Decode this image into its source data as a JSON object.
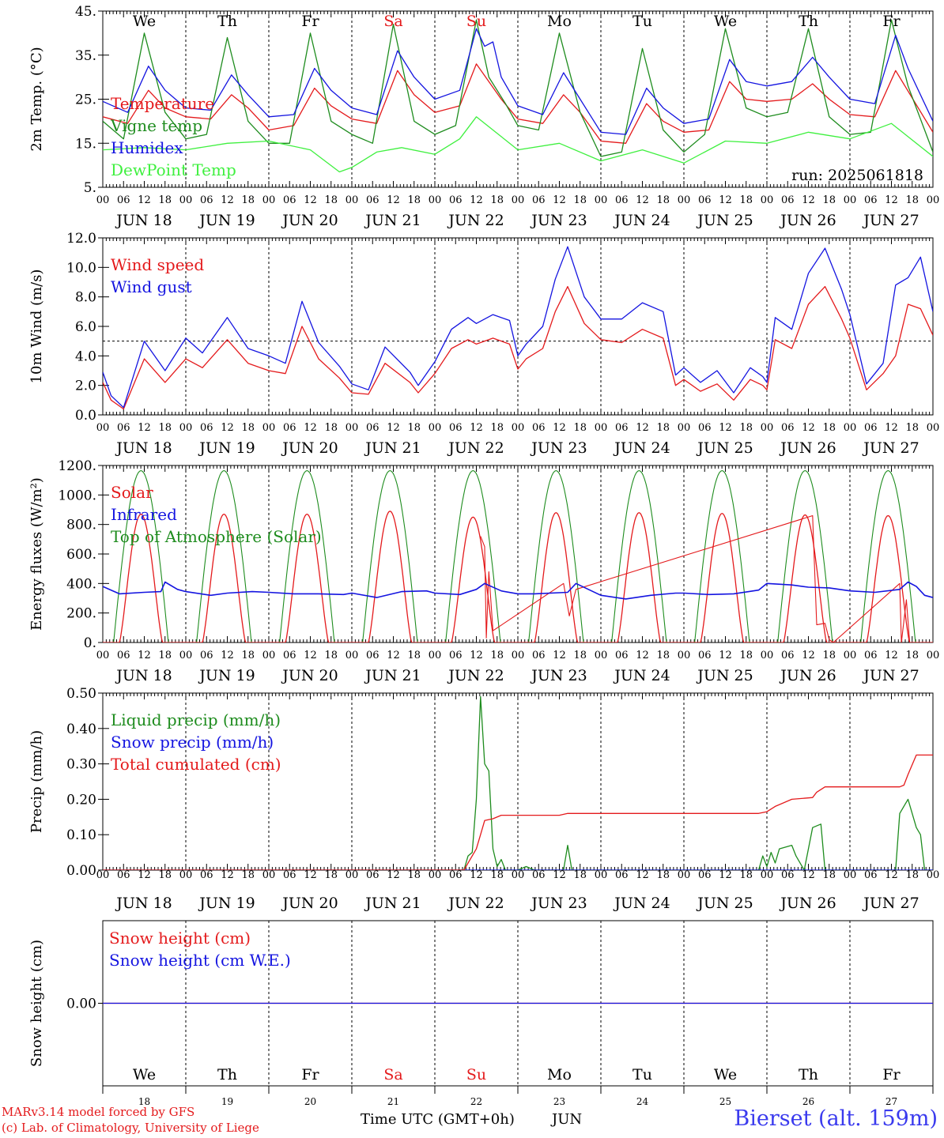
{
  "colors": {
    "red": "#e41a1c",
    "green": "#1e8c1e",
    "blue": "#1414e0",
    "lightgreen": "#3ff03f",
    "black": "#000000"
  },
  "x_axis": {
    "hour_labels": [
      "00",
      "06",
      "12",
      "18"
    ],
    "end_hour_label": "00",
    "date_labels": [
      "JUN 18",
      "JUN 19",
      "JUN 20",
      "JUN 21",
      "JUN 22",
      "JUN 23",
      "JUN 24",
      "JUN 25",
      "JUN 26",
      "JUN 27"
    ],
    "weekdays": [
      "We",
      "Th",
      "Fr",
      "Sa",
      "Su",
      "Mo",
      "Tu",
      "We",
      "Th",
      "Fr"
    ],
    "weekend_days": [
      3,
      4
    ],
    "bottom_day_numbers": [
      "18",
      "19",
      "20",
      "21",
      "22",
      "23",
      "24",
      "25",
      "26",
      "27"
    ]
  },
  "chart_data": [
    {
      "type": "line",
      "ylabel": "2m Temp. (°C)",
      "ylim": [
        5,
        45
      ],
      "ticks": [
        {
          "v": 45,
          "t": "45."
        },
        {
          "v": 35,
          "t": "35."
        },
        {
          "v": 25,
          "t": "25."
        },
        {
          "v": 15,
          "t": "15."
        },
        {
          "v": 5,
          "t": "5."
        }
      ],
      "annotation": "run: 2025061818",
      "series": [
        {
          "name": "Temperature",
          "color": "#e41a1c",
          "x": [
            0,
            0.3,
            0.55,
            0.75,
            1,
            1.3,
            1.55,
            1.75,
            2,
            2.3,
            2.55,
            2.75,
            3,
            3.3,
            3.55,
            3.75,
            4,
            4.3,
            4.5,
            4.65,
            4.8,
            5,
            5.3,
            5.55,
            5.75,
            6,
            6.3,
            6.55,
            6.75,
            7,
            7.3,
            7.55,
            7.75,
            8,
            8.3,
            8.55,
            8.75,
            9,
            9.3,
            9.55,
            10
          ],
          "y": [
            21,
            19.5,
            27,
            23,
            21,
            20.5,
            26,
            23,
            18,
            19,
            27.5,
            23.5,
            20.5,
            19.5,
            31.5,
            26,
            22,
            23.5,
            33,
            29,
            25,
            20.5,
            19.5,
            26,
            22,
            15.5,
            15,
            24,
            20,
            17.5,
            18,
            29,
            25,
            24.5,
            25,
            28.5,
            25,
            21.5,
            21,
            31.5,
            17.5
          ]
        },
        {
          "name": "Vigne temp",
          "color": "#1e8c1e",
          "x": [
            0,
            0.25,
            0.5,
            0.75,
            1,
            1.25,
            1.5,
            1.75,
            2,
            2.25,
            2.5,
            2.75,
            3,
            3.25,
            3.5,
            3.75,
            4,
            4.25,
            4.5,
            4.65,
            4.85,
            5,
            5.25,
            5.5,
            5.75,
            6,
            6.25,
            6.5,
            6.75,
            7,
            7.25,
            7.5,
            7.75,
            8,
            8.25,
            8.5,
            8.75,
            9,
            9.25,
            9.5,
            9.7,
            10
          ],
          "y": [
            20,
            16,
            40,
            22,
            16,
            17,
            39,
            20,
            15,
            15,
            40,
            20,
            17,
            15,
            42,
            20,
            17,
            19,
            43,
            30,
            24,
            19,
            18,
            40,
            22,
            12,
            13,
            36.5,
            18,
            13,
            17,
            41,
            23,
            21,
            22,
            41,
            21,
            17,
            17.5,
            43,
            28,
            13
          ]
        },
        {
          "name": "Humidex",
          "color": "#1414e0",
          "x": [
            0,
            0.3,
            0.55,
            0.75,
            1,
            1.3,
            1.55,
            1.75,
            2,
            2.3,
            2.55,
            2.75,
            3,
            3.3,
            3.55,
            3.75,
            4,
            4.3,
            4.5,
            4.6,
            4.7,
            4.8,
            5,
            5.3,
            5.55,
            5.75,
            6,
            6.3,
            6.55,
            6.75,
            7,
            7.3,
            7.55,
            7.75,
            8,
            8.3,
            8.55,
            8.75,
            9,
            9.3,
            9.55,
            9.7,
            10
          ],
          "y": [
            24.5,
            22,
            32.5,
            27,
            23,
            22.5,
            30.5,
            26,
            21,
            21.5,
            32,
            27,
            23,
            21.5,
            36,
            30,
            25,
            27,
            41,
            37,
            38,
            30,
            23.5,
            21.5,
            31,
            25,
            17.5,
            17,
            27.5,
            23,
            19.5,
            20.5,
            34,
            29,
            28,
            29,
            34.5,
            30,
            25,
            24,
            39.5,
            32,
            20
          ]
        },
        {
          "name": "DewPoint Temp",
          "color": "#3ff03f",
          "x": [
            0,
            0.5,
            1,
            1.5,
            2,
            2.5,
            2.85,
            3,
            3.3,
            3.6,
            4,
            4.3,
            4.5,
            4.7,
            5,
            5.5,
            6,
            6.5,
            7,
            7.5,
            8,
            8.5,
            9,
            9.5,
            10
          ],
          "y": [
            13.5,
            14,
            13.5,
            15,
            15.5,
            13.5,
            8.5,
            9.5,
            13,
            14,
            12.5,
            16,
            21,
            18,
            13.5,
            15,
            11,
            13.5,
            10.5,
            15.5,
            15,
            17.5,
            16,
            19.5,
            12
          ]
        }
      ]
    },
    {
      "type": "line",
      "ylabel": "10m Wind (m/s)",
      "ylim": [
        0,
        12
      ],
      "ticks": [
        {
          "v": 12,
          "t": "12.0"
        },
        {
          "v": 10,
          "t": "10.0"
        },
        {
          "v": 8,
          "t": "8.0"
        },
        {
          "v": 6,
          "t": "6.0"
        },
        {
          "v": 4,
          "t": "4.0"
        },
        {
          "v": 2,
          "t": "2.0"
        },
        {
          "v": 0,
          "t": "0.0"
        }
      ],
      "ref_line": 5,
      "series": [
        {
          "name": "Wind speed",
          "color": "#e41a1c",
          "x": [
            0,
            0.1,
            0.25,
            0.5,
            0.75,
            1,
            1.2,
            1.5,
            1.75,
            2,
            2.2,
            2.4,
            2.6,
            2.85,
            3,
            3.2,
            3.4,
            3.7,
            3.8,
            4,
            4.2,
            4.4,
            4.5,
            4.7,
            4.9,
            5,
            5.1,
            5.3,
            5.45,
            5.6,
            5.8,
            6,
            6.25,
            6.5,
            6.75,
            6.9,
            7,
            7.2,
            7.4,
            7.6,
            7.8,
            7.95,
            8,
            8.1,
            8.3,
            8.5,
            8.7,
            8.9,
            9,
            9.2,
            9.4,
            9.55,
            9.7,
            9.85,
            10
          ],
          "y": [
            2.2,
            1,
            0.4,
            3.8,
            2.2,
            3.8,
            3.2,
            5.1,
            3.5,
            3,
            2.8,
            6,
            3.8,
            2.5,
            1.5,
            1.4,
            3.5,
            2.2,
            1.5,
            2.8,
            4.5,
            5.1,
            4.8,
            5.2,
            4.8,
            3.1,
            3.8,
            4.5,
            7,
            8.7,
            6.2,
            5.1,
            4.9,
            5.8,
            5.2,
            2,
            2.4,
            1.6,
            2.1,
            1,
            2.4,
            2,
            1.7,
            5.1,
            4.5,
            7.5,
            8.7,
            6.5,
            5.2,
            1.7,
            2.8,
            4,
            7.5,
            7.2,
            5.4
          ]
        },
        {
          "name": "Wind gust",
          "color": "#1414e0",
          "x": [
            0,
            0.1,
            0.25,
            0.5,
            0.75,
            1,
            1.2,
            1.5,
            1.75,
            2,
            2.2,
            2.4,
            2.6,
            2.85,
            3,
            3.2,
            3.4,
            3.7,
            3.8,
            4,
            4.2,
            4.4,
            4.5,
            4.7,
            4.9,
            5,
            5.1,
            5.3,
            5.45,
            5.6,
            5.8,
            6,
            6.25,
            6.5,
            6.75,
            6.9,
            7,
            7.2,
            7.4,
            7.6,
            7.8,
            7.95,
            8,
            8.1,
            8.3,
            8.5,
            8.7,
            8.9,
            9,
            9.2,
            9.4,
            9.55,
            9.7,
            9.85,
            10
          ],
          "y": [
            2.9,
            1.3,
            0.5,
            5,
            3,
            5.2,
            4.2,
            6.6,
            4.5,
            4,
            3.5,
            7.7,
            4.9,
            3.3,
            2.1,
            1.7,
            4.6,
            2.9,
            2,
            3.6,
            5.8,
            6.6,
            6.2,
            6.8,
            6.4,
            4,
            4.8,
            6,
            9.2,
            11.4,
            8,
            6.5,
            6.5,
            7.6,
            7,
            2.7,
            3.2,
            2.2,
            3,
            1.5,
            3.2,
            2.6,
            2.2,
            6.6,
            5.8,
            9.6,
            11.3,
            8.5,
            6.8,
            2.1,
            3.5,
            8.8,
            9.3,
            10.7,
            7
          ]
        }
      ]
    },
    {
      "type": "line",
      "ylabel": "Energy fluxes (W/m²)",
      "ylim": [
        0,
        1200
      ],
      "ticks": [
        {
          "v": 1200,
          "t": "1200."
        },
        {
          "v": 1000,
          "t": "1000."
        },
        {
          "v": 800,
          "t": "800."
        },
        {
          "v": 600,
          "t": "600."
        },
        {
          "v": 400,
          "t": "400."
        },
        {
          "v": 200,
          "t": "200."
        },
        {
          "v": 0,
          "t": "0."
        }
      ],
      "toa_peak": 1165,
      "solar_peaks": [
        870,
        870,
        870,
        890,
        850,
        880,
        880,
        875,
        865,
        860
      ],
      "series": [
        {
          "name": "Solar",
          "color": "#e41a1c",
          "x": [
            4.55,
            4.6,
            4.62,
            4.65,
            4.7,
            5.55,
            5.62,
            5.7,
            8.55,
            8.6,
            8.7,
            8.75,
            8.8,
            9.6,
            9.62,
            9.68,
            9.72
          ],
          "y": [
            720,
            650,
            30,
            480,
            80,
            400,
            180,
            360,
            860,
            120,
            130,
            20,
            0,
            400,
            0,
            290,
            0
          ]
        },
        {
          "name": "Infrared",
          "color": "#1414e0",
          "x": [
            0,
            0.2,
            0.5,
            0.7,
            0.75,
            0.9,
            1,
            1.3,
            1.5,
            1.8,
            2,
            2.3,
            2.6,
            2.9,
            3,
            3.3,
            3.6,
            3.9,
            4,
            4.3,
            4.5,
            4.6,
            4.8,
            5,
            5.2,
            5.6,
            5.7,
            6,
            6.3,
            6.6,
            6.9,
            7,
            7.3,
            7.6,
            7.9,
            8,
            8.3,
            8.5,
            8.75,
            9,
            9.3,
            9.6,
            9.7,
            9.8,
            9.9,
            10
          ],
          "y": [
            380,
            330,
            340,
            345,
            410,
            360,
            345,
            320,
            335,
            345,
            340,
            330,
            330,
            325,
            335,
            305,
            345,
            350,
            335,
            325,
            360,
            400,
            350,
            330,
            330,
            340,
            400,
            320,
            295,
            320,
            335,
            335,
            325,
            330,
            355,
            400,
            390,
            375,
            370,
            350,
            340,
            360,
            410,
            380,
            320,
            305
          ]
        },
        {
          "name": "Top of Atmosphere (Solar)",
          "color": "#1e8c1e",
          "x": [],
          "y": []
        }
      ]
    },
    {
      "type": "line",
      "ylabel": "Precip (mm/h)",
      "ylim": [
        0,
        0.5
      ],
      "ticks": [
        {
          "v": 0.5,
          "t": "0.50"
        },
        {
          "v": 0.4,
          "t": "0.40"
        },
        {
          "v": 0.3,
          "t": "0.30"
        },
        {
          "v": 0.2,
          "t": "0.20"
        },
        {
          "v": 0.1,
          "t": "0.10"
        },
        {
          "v": 0,
          "t": "0.00"
        }
      ],
      "series": [
        {
          "name": "Liquid precip (mm/h)",
          "color": "#1e8c1e",
          "x": [
            0,
            4.35,
            4.4,
            4.45,
            4.5,
            4.55,
            4.6,
            4.65,
            4.7,
            4.75,
            4.8,
            4.85,
            5,
            5.1,
            5.2,
            5.55,
            5.6,
            5.65,
            7.9,
            7.95,
            8,
            8.05,
            8.1,
            8.15,
            8.3,
            8.35,
            8.45,
            8.55,
            8.65,
            8.7,
            9.55,
            9.6,
            9.7,
            9.8,
            9.85,
            9.9,
            10
          ],
          "y": [
            0,
            0,
            0.04,
            0.05,
            0.2,
            0.49,
            0.3,
            0.28,
            0.06,
            0.01,
            0.03,
            0,
            0,
            0.01,
            0,
            0,
            0.07,
            0,
            0,
            0.04,
            0.01,
            0.05,
            0.02,
            0.06,
            0.07,
            0.04,
            0,
            0.12,
            0.13,
            0,
            0,
            0.16,
            0.2,
            0.12,
            0.1,
            0,
            0
          ]
        },
        {
          "name": "Snow precip (mm/h)",
          "color": "#1414e0",
          "x": [
            0,
            10
          ],
          "y": [
            0,
            0
          ]
        },
        {
          "name": "Total cumulated (cm)",
          "color": "#e41a1c",
          "x": [
            0,
            4.35,
            4.5,
            4.55,
            4.6,
            4.7,
            4.8,
            5,
            5.5,
            5.6,
            7.9,
            8.0,
            8.1,
            8.3,
            8.55,
            8.6,
            8.7,
            9.6,
            9.65,
            9.7,
            9.8,
            10
          ],
          "y": [
            0,
            0,
            0.06,
            0.1,
            0.14,
            0.145,
            0.155,
            0.155,
            0.155,
            0.16,
            0.16,
            0.165,
            0.18,
            0.2,
            0.205,
            0.22,
            0.235,
            0.235,
            0.24,
            0.27,
            0.325,
            0.325
          ]
        }
      ]
    },
    {
      "type": "line",
      "ylabel": "Snow height (cm)",
      "ylim": [
        -1,
        1
      ],
      "ticks": [
        {
          "v": 0,
          "t": "0.00"
        }
      ],
      "series": [
        {
          "name": "Snow height (cm)",
          "color": "#e41a1c",
          "x": [
            0,
            10
          ],
          "y": [
            0,
            0
          ]
        },
        {
          "name": "Snow height (cm W.E.)",
          "color": "#1414e0",
          "x": [
            0,
            10
          ],
          "y": [
            0,
            0
          ]
        }
      ]
    }
  ],
  "footer": {
    "model": "MARv3.14 model forced by GFS",
    "copyright": "(c) Lab. of Climatology, University of Liege",
    "time_label": "Time UTC (GMT+0h)",
    "month": "JUN",
    "station": "Bierset (alt. 159m)"
  }
}
